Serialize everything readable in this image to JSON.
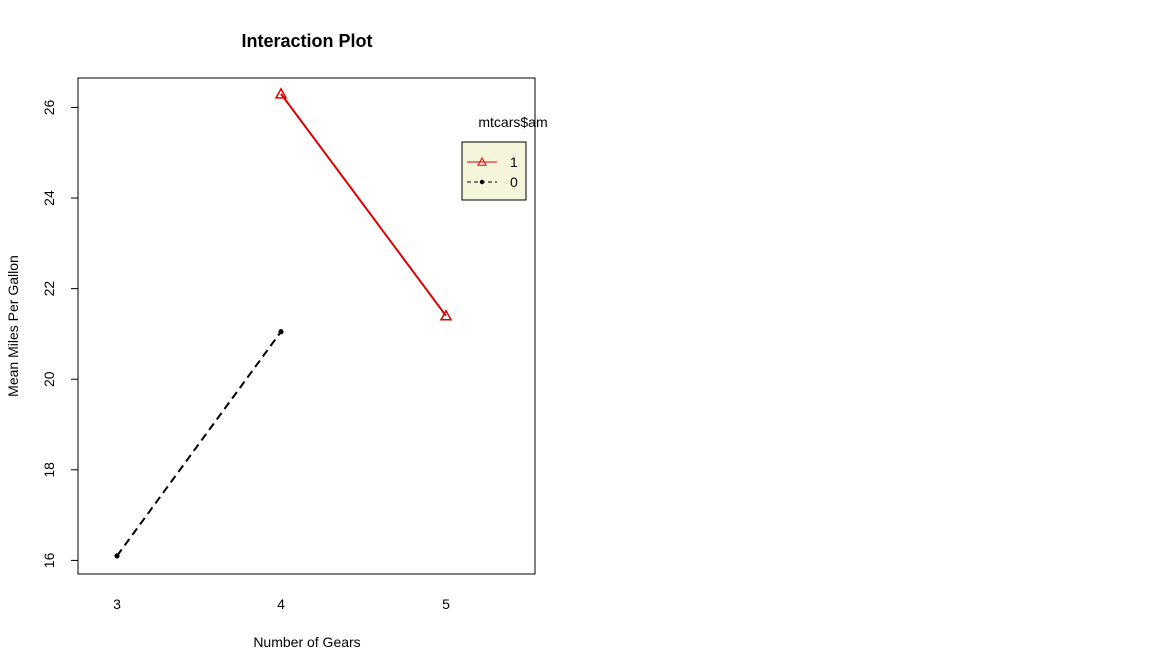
{
  "chart_data": {
    "type": "line",
    "title": "Interaction Plot",
    "xlabel": "Number of Gears",
    "ylabel": "Mean Miles Per Gallon",
    "categories": [
      "3",
      "4",
      "5"
    ],
    "x_ticks": [
      "3",
      "4",
      "5"
    ],
    "y_ticks": [
      "16",
      "18",
      "20",
      "22",
      "24",
      "26"
    ],
    "ylim": [
      15.7,
      26.65
    ],
    "grid": false,
    "legend": {
      "title": "mtcars$am",
      "placement": "top-right",
      "background": "#f5f5dc"
    },
    "series": [
      {
        "name": "1",
        "x": [
          "4",
          "5"
        ],
        "values": [
          26.3,
          21.4
        ],
        "color": "#dd0000",
        "line_style": "solid",
        "marker": "triangle-open"
      },
      {
        "name": "0",
        "x": [
          "3",
          "4"
        ],
        "values": [
          16.1,
          21.05
        ],
        "color": "#000000",
        "line_style": "dashed",
        "marker": "dot"
      }
    ]
  }
}
